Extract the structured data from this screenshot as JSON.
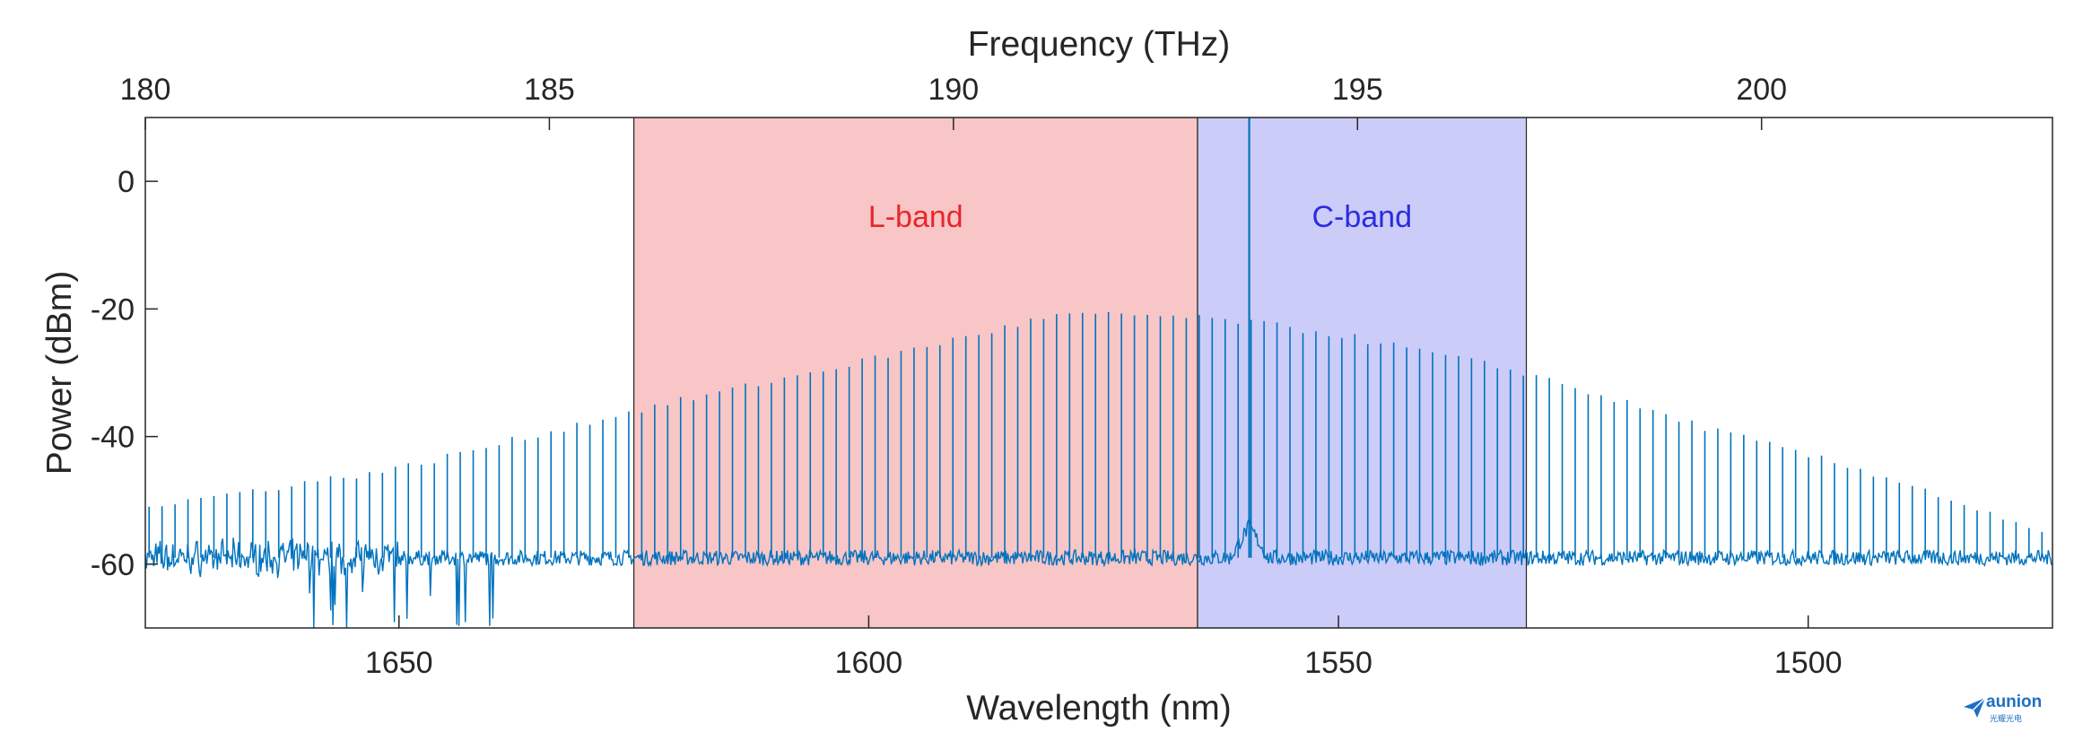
{
  "chart_data": {
    "type": "line",
    "x_bottom": {
      "label": "Wavelength (nm)",
      "ticks": [
        1650,
        1600,
        1550,
        1500
      ],
      "range": [
        1677,
        1474
      ],
      "reversed": true
    },
    "x_top": {
      "label": "Frequency (THz)",
      "ticks": [
        180,
        185,
        190,
        195,
        200
      ],
      "range": [
        180,
        203.6
      ]
    },
    "y": {
      "label": "Power (dBm)",
      "ticks": [
        0,
        -20,
        -40,
        -60
      ],
      "range": [
        -70,
        10
      ]
    },
    "bands": [
      {
        "name": "L-band",
        "x_start_nm": 1625,
        "x_end_nm": 1565,
        "color": "#f08080",
        "label_color": "#e8262b"
      },
      {
        "name": "C-band",
        "x_start_nm": 1565,
        "x_end_nm": 1530,
        "color": "#8f8ff2",
        "label_color": "#2b2be0"
      }
    ],
    "series": [
      {
        "color": "#0072bd",
        "pump_line": {
          "x_nm": 1559.5,
          "peak_dbm": 10
        },
        "comb_envelope": {
          "x_nm": [
            1677,
            1650,
            1625,
            1600,
            1580,
            1570,
            1560,
            1550,
            1530,
            1510,
            1490,
            1474
          ],
          "y_dbm": [
            -51,
            -45,
            -36,
            -28,
            -21,
            -21,
            -22,
            -24,
            -30,
            -39,
            -47,
            -56
          ]
        },
        "noise_floor_dbm": -59
      }
    ],
    "grid": false,
    "legend": "none"
  },
  "watermark": {
    "word": "aunion",
    "sub": "光耀光电"
  }
}
